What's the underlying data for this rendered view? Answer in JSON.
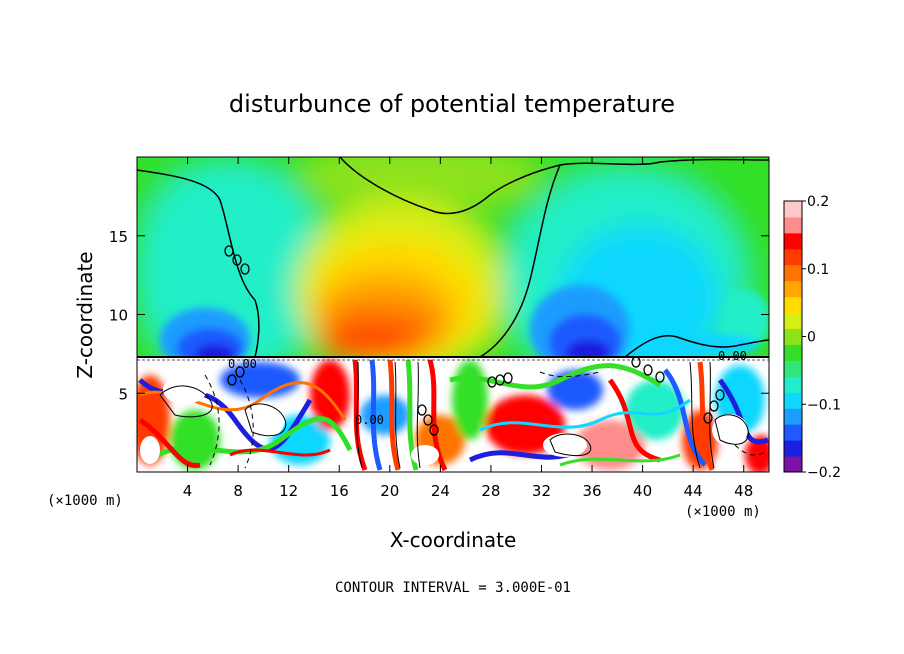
{
  "chart_data": {
    "type": "heatmap",
    "title": "disturbunce of potential temperature",
    "xlabel": "X-coordinate",
    "ylabel": "Z-coordinate",
    "x_unit_left": "(×1000 m)",
    "x_unit_right": "(×1000 m)",
    "xlim": [
      0,
      50
    ],
    "ylim": [
      0,
      20
    ],
    "x_ticks": [
      4,
      8,
      12,
      16,
      20,
      24,
      28,
      32,
      36,
      40,
      44,
      48
    ],
    "y_ticks": [
      5,
      10,
      15
    ],
    "colorbar": {
      "range": [
        -0.2,
        0.2
      ],
      "tick_values": [
        0.2,
        0.1,
        0,
        -0.1,
        -0.2
      ],
      "tick_labels": [
        "0.2",
        "0.1",
        "0",
        "−0.1",
        "−0.2"
      ],
      "colors": [
        "#7d12a8",
        "#1c1ee0",
        "#1e5aff",
        "#1f9cff",
        "#0fd7ff",
        "#20eec8",
        "#33e67a",
        "#33e027",
        "#8de21a",
        "#d5ee16",
        "#ffdb00",
        "#ffa700",
        "#ff7300",
        "#ff3b00",
        "#ff0000",
        "#ff8c8c",
        "#ffc9c9"
      ]
    },
    "footer": "CONTOUR INTERVAL = 3.000E-01",
    "contour_labels": [
      "0.00",
      "0.00",
      "0.00"
    ]
  }
}
